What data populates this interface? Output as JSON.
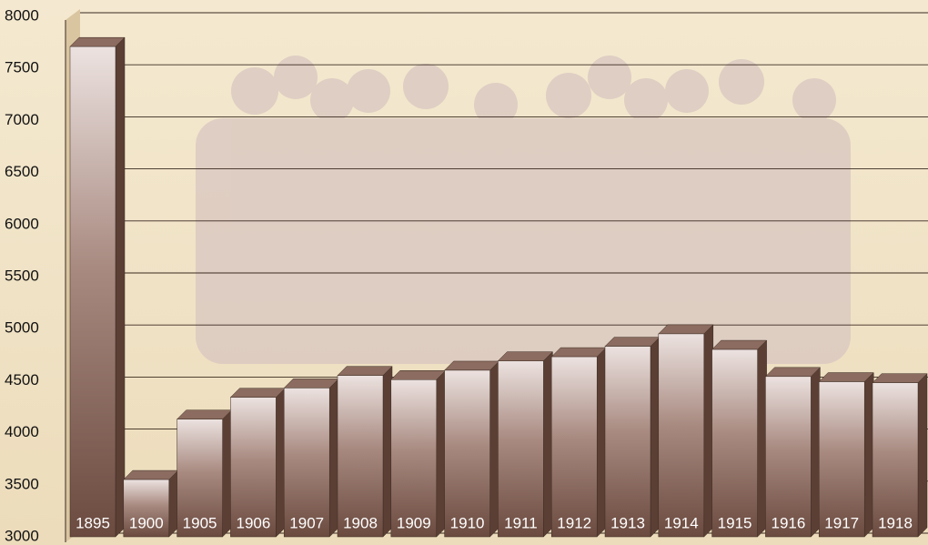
{
  "chart_data": {
    "type": "bar3d",
    "categories": [
      "1895",
      "1900",
      "1905",
      "1906",
      "1907",
      "1908",
      "1909",
      "1910",
      "1911",
      "1912",
      "1913",
      "1914",
      "1915",
      "1916",
      "1917",
      "1918"
    ],
    "values": [
      7710,
      3550,
      4130,
      4340,
      4430,
      4550,
      4510,
      4600,
      4690,
      4730,
      4830,
      4950,
      4800,
      4540,
      4490,
      4480
    ],
    "color": "#6b4a3f",
    "ylim": [
      3000,
      8000
    ],
    "yticks": [
      3000,
      3500,
      4000,
      4500,
      5000,
      5500,
      6000,
      6500,
      7000,
      7500,
      8000
    ],
    "grid": true
  }
}
